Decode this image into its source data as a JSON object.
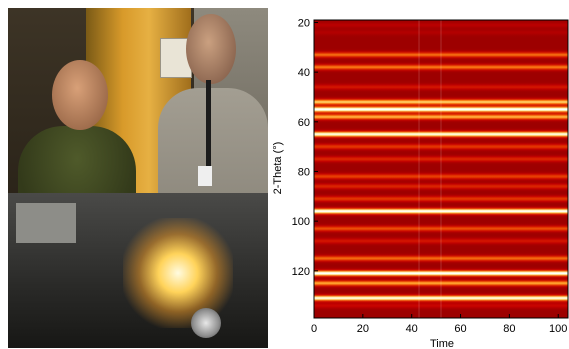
{
  "photo": {
    "alt": "Two researchers standing next to an experimental apparatus"
  },
  "chart_data": {
    "type": "heatmap",
    "xlabel": "Time",
    "ylabel": "2-Theta (°)",
    "xlim": [
      0,
      104
    ],
    "ylim": [
      19,
      139
    ],
    "y_reversed": true,
    "x_ticks": [
      0,
      20,
      40,
      60,
      80,
      100
    ],
    "y_ticks": [
      20,
      40,
      60,
      80,
      100,
      120
    ],
    "colormap": [
      "#400000",
      "#8b0000",
      "#c40000",
      "#e23400",
      "#ff8c1a",
      "#ffe680",
      "#ffffff"
    ],
    "background_intensity": 0.22,
    "bands": [
      {
        "two_theta": 21,
        "intensity": 0.3
      },
      {
        "two_theta": 24,
        "intensity": 0.28
      },
      {
        "two_theta": 33,
        "intensity": 0.6
      },
      {
        "two_theta": 38,
        "intensity": 0.62
      },
      {
        "two_theta": 46,
        "intensity": 0.4
      },
      {
        "two_theta": 52,
        "intensity": 0.78
      },
      {
        "two_theta": 55,
        "intensity": 1.0
      },
      {
        "two_theta": 58,
        "intensity": 0.72
      },
      {
        "two_theta": 65,
        "intensity": 0.95
      },
      {
        "two_theta": 70,
        "intensity": 0.5
      },
      {
        "two_theta": 75,
        "intensity": 0.45
      },
      {
        "two_theta": 82,
        "intensity": 0.52
      },
      {
        "two_theta": 86,
        "intensity": 0.45
      },
      {
        "two_theta": 91,
        "intensity": 0.5
      },
      {
        "two_theta": 96,
        "intensity": 0.98
      },
      {
        "two_theta": 103,
        "intensity": 0.55
      },
      {
        "two_theta": 108,
        "intensity": 0.4
      },
      {
        "two_theta": 115,
        "intensity": 0.6
      },
      {
        "two_theta": 121,
        "intensity": 1.0
      },
      {
        "two_theta": 125,
        "intensity": 0.7
      },
      {
        "two_theta": 131,
        "intensity": 0.95
      },
      {
        "two_theta": 134,
        "intensity": 0.35
      }
    ],
    "vertical_artifacts_time": [
      43,
      52
    ]
  }
}
